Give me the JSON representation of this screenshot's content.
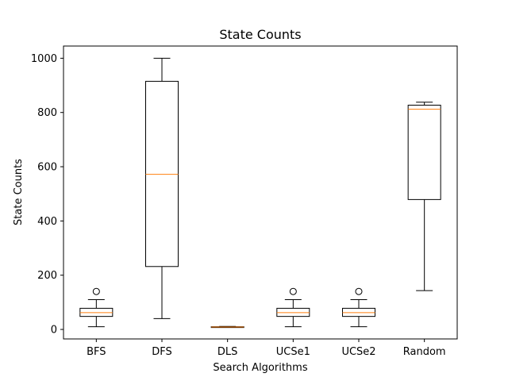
{
  "chart_data": {
    "type": "box",
    "title": "State Counts",
    "xlabel": "Search Algorithms",
    "ylabel": "State Counts",
    "ylim": [
      -35,
      1045
    ],
    "yticks": [
      0,
      200,
      400,
      600,
      800,
      1000
    ],
    "grid": false,
    "legend": "none",
    "colors": {
      "box": "#000000",
      "median": "#ff7f0e",
      "background": "#ffffff"
    },
    "boxes": [
      {
        "label": "BFS",
        "whisker_low": 10,
        "q1": 48,
        "median": 62,
        "q3": 78,
        "whisker_high": 110,
        "outliers": [
          140
        ]
      },
      {
        "label": "DFS",
        "whisker_low": 40,
        "q1": 232,
        "median": 572,
        "q3": 915,
        "whisker_high": 1000,
        "outliers": []
      },
      {
        "label": "DLS",
        "whisker_low": 8,
        "q1": 8,
        "median": 9,
        "q3": 10,
        "whisker_high": 11,
        "outliers": []
      },
      {
        "label": "UCSe1",
        "whisker_low": 10,
        "q1": 48,
        "median": 62,
        "q3": 78,
        "whisker_high": 110,
        "outliers": [
          140
        ]
      },
      {
        "label": "UCSe2",
        "whisker_low": 10,
        "q1": 48,
        "median": 62,
        "q3": 78,
        "whisker_high": 110,
        "outliers": [
          140
        ]
      },
      {
        "label": "Random",
        "whisker_low": 143,
        "q1": 479,
        "median": 812,
        "q3": 827,
        "whisker_high": 838,
        "outliers": []
      }
    ]
  }
}
